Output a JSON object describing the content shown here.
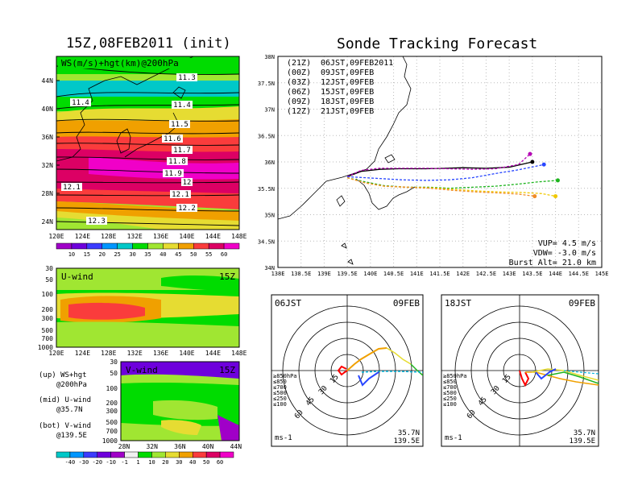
{
  "left_title": "15Z,08FEB2011 (init)",
  "right_title": "Sonde Tracking Forecast",
  "map_panel": {
    "label": "WS(m/s)+hgt(km)@200hPa",
    "lat_ticks": [
      "44N",
      "40N",
      "36N",
      "32N",
      "28N",
      "24N"
    ],
    "lon_ticks": [
      "120E",
      "124E",
      "128E",
      "132E",
      "136E",
      "140E",
      "144E",
      "148E"
    ],
    "contour_labels": [
      "11.3",
      "11.4",
      "11.4",
      "11.5",
      "11.6",
      "11.7",
      "11.8",
      "11.9",
      "12",
      "12.1",
      "12.1",
      "12.2",
      "12.3"
    ],
    "colorbar_ticks": [
      "10",
      "15",
      "20",
      "25",
      "30",
      "35",
      "40",
      "45",
      "50",
      "55",
      "60"
    ],
    "colorbar_colors": [
      "#a000c8",
      "#6e00dc",
      "#3c3cff",
      "#0096ff",
      "#00c8c8",
      "#00dc00",
      "#a0e632",
      "#e6dc32",
      "#f0a000",
      "#fa3c3c",
      "#dc0064",
      "#f000c8"
    ]
  },
  "u_panel": {
    "label": "U-wind",
    "time": "15Z",
    "y_ticks": [
      "30",
      "50",
      "100",
      "200",
      "300",
      "500",
      "700",
      "1000"
    ],
    "x_ticks": [
      "120E",
      "124E",
      "128E",
      "132E",
      "136E",
      "140E",
      "144E",
      "148E"
    ]
  },
  "v_panel": {
    "label": "V-wind",
    "time": "15Z",
    "y_ticks": [
      "30",
      "50",
      "100",
      "200",
      "300",
      "500",
      "700",
      "1000"
    ],
    "x_ticks": [
      "28N",
      "32N",
      "36N",
      "40N",
      "44N"
    ]
  },
  "notes": [
    "(up) WS+hgt",
    "@200hPa",
    "(mid) U-wind",
    "@35.7N",
    "(bot) V-wind",
    "@139.5E"
  ],
  "bottom_colorbar": {
    "ticks": [
      "-40",
      "-30",
      "-20",
      "-10",
      "-1",
      "1",
      "10",
      "20",
      "30",
      "40",
      "50",
      "60"
    ],
    "colors": [
      "#00c8c8",
      "#0096ff",
      "#3c3cff",
      "#6e00dc",
      "#a000c8",
      "#f0f0f0",
      "#00dc00",
      "#a0e632",
      "#e6dc32",
      "#f0a000",
      "#fa3c3c",
      "#dc0064",
      "#f000c8"
    ]
  },
  "chart_data": [
    {
      "type": "line",
      "title": "Sonde Tracking Forecast",
      "xlim": [
        138,
        145
      ],
      "ylim": [
        34,
        38
      ],
      "x_ticks": [
        "138E",
        "138.5E",
        "139E",
        "139.5E",
        "140E",
        "140.5E",
        "141E",
        "141.5E",
        "142E",
        "142.5E",
        "143E",
        "143.5E",
        "144E",
        "144.5E",
        "145E"
      ],
      "y_ticks": [
        "34N",
        "34.5N",
        "35N",
        "35.5N",
        "36N",
        "36.5N",
        "37N",
        "37.5N",
        "38N"
      ],
      "legend": [
        {
          "tag": "(21Z)",
          "text": "06JST,09FEB2011",
          "color": "#000000"
        },
        {
          "tag": "(00Z)",
          "text": "09JST,09FEB",
          "color": "#b400b4"
        },
        {
          "tag": "(03Z)",
          "text": "12JST,09FEB",
          "color": "#2846ff"
        },
        {
          "tag": "(06Z)",
          "text": "15JST,09FEB",
          "color": "#1eb41e"
        },
        {
          "tag": "(09Z)",
          "text": "18JST,09FEB",
          "color": "#f0c800"
        },
        {
          "tag": "(12Z)",
          "text": "21JST,09FEB",
          "color": "#f08c28"
        }
      ],
      "series": [
        {
          "name": "(21Z) 06JST,09FEB2011",
          "color": "#000000",
          "x": [
            139.5,
            139.8,
            140.2,
            140.6,
            141.2,
            141.6,
            142.0,
            142.5,
            143.0,
            143.5
          ],
          "y": [
            35.72,
            35.82,
            35.86,
            35.87,
            35.87,
            35.88,
            35.89,
            35.88,
            35.9,
            36.0
          ]
        },
        {
          "name": "(00Z) 09JST,09FEB",
          "color": "#b400b4",
          "x": [
            139.5,
            139.8,
            140.2,
            140.7,
            141.2,
            141.7,
            142.2,
            142.7,
            143.2,
            143.45
          ],
          "y": [
            35.72,
            35.84,
            35.88,
            35.88,
            35.88,
            35.87,
            35.86,
            35.87,
            35.95,
            36.15
          ]
        },
        {
          "name": "(03Z) 12JST,09FEB",
          "color": "#2846ff",
          "x": [
            139.5,
            139.9,
            140.3,
            140.7,
            141.2,
            141.7,
            142.2,
            142.7,
            143.2,
            143.75
          ],
          "y": [
            35.72,
            35.7,
            35.68,
            35.66,
            35.65,
            35.66,
            35.7,
            35.78,
            35.85,
            35.95
          ]
        },
        {
          "name": "(06Z) 15JST,09FEB",
          "color": "#1eb41e",
          "x": [
            139.5,
            139.9,
            140.3,
            140.8,
            141.3,
            141.7,
            142.2,
            142.7,
            143.2,
            143.6,
            144.05
          ],
          "y": [
            35.7,
            35.62,
            35.55,
            35.52,
            35.52,
            35.5,
            35.52,
            35.54,
            35.58,
            35.62,
            35.65
          ]
        },
        {
          "name": "(09Z) 18JST,09FEB",
          "color": "#f0c800",
          "x": [
            139.5,
            139.9,
            140.3,
            140.8,
            141.3,
            141.8,
            142.3,
            142.8,
            143.3,
            143.7,
            144.0
          ],
          "y": [
            35.7,
            35.6,
            35.54,
            35.52,
            35.51,
            35.48,
            35.45,
            35.43,
            35.42,
            35.4,
            35.35
          ]
        },
        {
          "name": "(12Z) 21JST,09FEB",
          "color": "#f08c28",
          "x": [
            139.5,
            139.9,
            140.3,
            140.8,
            141.3,
            141.8,
            142.3,
            142.8,
            143.2,
            143.55
          ],
          "y": [
            35.7,
            35.6,
            35.54,
            35.52,
            35.5,
            35.46,
            35.43,
            35.41,
            35.39,
            35.35
          ]
        }
      ],
      "annotations": [
        "VUP=  4.5 m/s",
        "VDW= -3.0 m/s",
        "Burst Alt= 21.0 km"
      ]
    },
    {
      "type": "line",
      "title": "06JST",
      "date": "09FEB",
      "location": [
        "35.7N",
        "139.5E"
      ],
      "units": "ms-1",
      "ring_labels": [
        "15",
        "30",
        "45",
        "60"
      ],
      "legend": [
        "≥850hPa",
        "≤850",
        "≤700",
        "≤500",
        "≤250",
        "≤100"
      ],
      "legend_colors": [
        "#ff0000",
        "#f0a000",
        "#e6dc32",
        "#1eb41e",
        "#00b4dc",
        "#2846ff"
      ]
    },
    {
      "type": "line",
      "title": "18JST",
      "date": "09FEB",
      "location": [
        "35.7N",
        "139.5E"
      ],
      "units": "ms-1",
      "ring_labels": [
        "15",
        "30",
        "45",
        "60"
      ],
      "legend": [
        "≥850hPa",
        "≤850",
        "≤700",
        "≤500",
        "≤250",
        "≤100"
      ],
      "legend_colors": [
        "#ff0000",
        "#f0a000",
        "#e6dc32",
        "#1eb41e",
        "#00b4dc",
        "#2846ff"
      ]
    }
  ]
}
